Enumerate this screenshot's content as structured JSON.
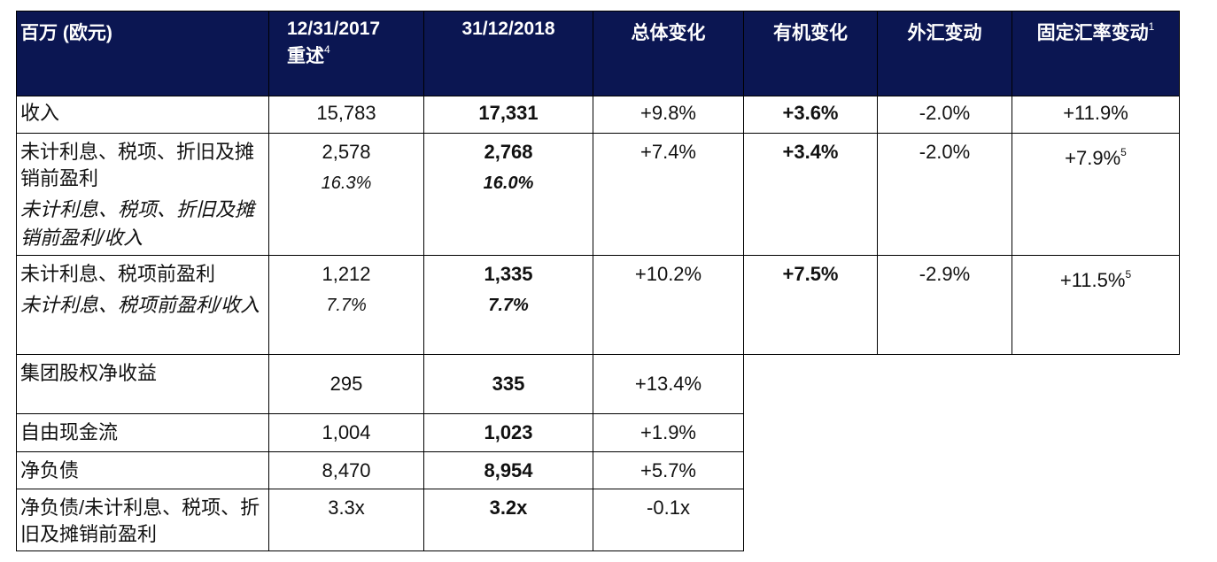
{
  "table": {
    "header": [
      {
        "text": "百万 (欧元)"
      },
      {
        "text": "12/31/2017",
        "note": "重述",
        "sup": "4"
      },
      {
        "text": "31/12/2018"
      },
      {
        "text": "总体变化"
      },
      {
        "text": "有机变化"
      },
      {
        "text": "外汇变动"
      },
      {
        "text": "固定汇率变动",
        "sup": "1"
      }
    ],
    "rows": [
      {
        "cells": [
          {
            "text": "收入"
          },
          {
            "text": "15,783"
          },
          {
            "text": "17,331"
          },
          {
            "text": "+9.8%"
          },
          {
            "text": "+3.6%"
          },
          {
            "text": "-2.0%"
          },
          {
            "text": "+11.9%"
          }
        ]
      },
      {
        "cells": [
          {
            "text": "未计利息、税项、折旧及摊销前盈利"
          },
          {
            "text": "2,578"
          },
          {
            "text": "2,768"
          },
          {
            "text": "+7.4%"
          },
          {
            "text": "+3.4%"
          },
          {
            "text": "-2.0%"
          },
          {
            "text": "+7.9%",
            "sup": "5"
          }
        ],
        "sub": [
          "未计利息、税项、折旧及摊销前盈利/收入",
          "16.3%",
          "16.0%"
        ]
      },
      {
        "cells": [
          {
            "text": "未计利息、税项前盈利"
          },
          {
            "text": "1,212"
          },
          {
            "text": "1,335"
          },
          {
            "text": "+10.2%"
          },
          {
            "text": "+7.5%"
          },
          {
            "text": "-2.9%"
          },
          {
            "text": "+11.5%",
            "sup": "5"
          }
        ],
        "sub": [
          "未计利息、税项前盈利/收入",
          "7.7%",
          "7.7%"
        ]
      },
      {
        "cells": [
          {
            "text": "集团股权净收益"
          },
          {
            "text": "295"
          },
          {
            "text": "335"
          },
          {
            "text": "+13.4%"
          }
        ]
      },
      {
        "cells": [
          {
            "text": "自由现金流"
          },
          {
            "text": "1,004"
          },
          {
            "text": "1,023"
          },
          {
            "text": "+1.9%"
          }
        ]
      },
      {
        "cells": [
          {
            "text": "净负债"
          },
          {
            "text": "8,470"
          },
          {
            "text": "8,954"
          },
          {
            "text": "+5.7%"
          }
        ]
      },
      {
        "cells": [
          {
            "text": "净负债/未计利息、税项、折旧及摊销前盈利"
          },
          {
            "text": "3.3x"
          },
          {
            "text": "3.2x"
          },
          {
            "text": "-0.1x"
          }
        ]
      }
    ]
  }
}
